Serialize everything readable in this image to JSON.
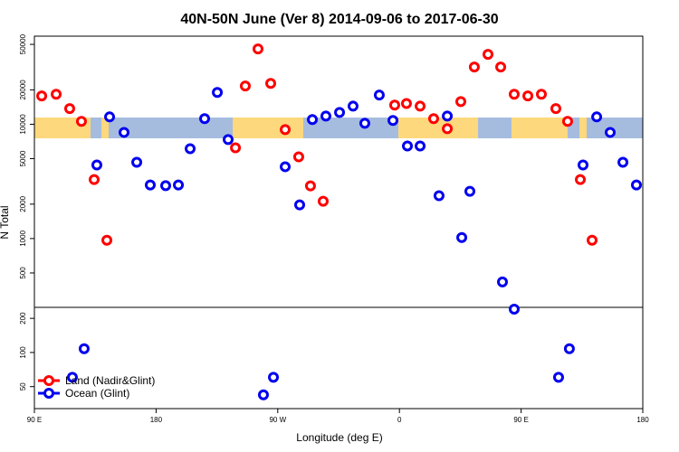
{
  "chart_data": {
    "type": "scatter",
    "title": "40N-50N June (Ver 8)   2014-09-06 to 2017-06-30",
    "x_label": "Longitude (deg E)",
    "y_label": "N Total",
    "log_y": true,
    "legend": "bottom-left",
    "xlim": [
      90,
      540
    ],
    "xticks": [
      {
        "value": 90,
        "label": "90 E"
      },
      {
        "value": 180,
        "label": "180"
      },
      {
        "value": 270,
        "label": "90 W"
      },
      {
        "value": 360,
        "label": "0"
      },
      {
        "value": 450,
        "label": "90 E"
      },
      {
        "value": 540,
        "label": "180"
      }
    ],
    "panels": [
      {
        "ylim": [
          250,
          59000
        ],
        "yticks": [
          500,
          1000,
          2000,
          5000,
          10000,
          20000,
          50000
        ]
      },
      {
        "ylim": [
          32,
          250
        ],
        "yticks": [
          50,
          100,
          200
        ]
      }
    ],
    "series": [
      {
        "name": "Land (Nadir&Glint)",
        "color": "#ff0000",
        "x": [
          95.4,
          106.1,
          116.1,
          124.8,
          134.2,
          143.6,
          238.7,
          246.0,
          255.4,
          264.8,
          275.5,
          285.5,
          294.2,
          303.6,
          356.5,
          365.2,
          375.3,
          385.3,
          395.4,
          405.4,
          415.4,
          425.5,
          434.9,
          444.9,
          455.0,
          465.0,
          475.7,
          484.4,
          493.8,
          502.5
        ],
        "values": [
          17700,
          18300,
          13700,
          10600,
          3280,
          966,
          6220,
          21600,
          45600,
          22800,
          8980,
          5190,
          2890,
          2120,
          14700,
          15200,
          14400,
          11200,
          9140,
          15800,
          31700,
          40900,
          31700,
          18300,
          17700,
          18300,
          13700,
          10600,
          3280,
          966
        ]
      },
      {
        "name": "Ocean (Glint)",
        "color": "#0000ee",
        "x": [
          118.1,
          126.8,
          136.2,
          145.6,
          156.3,
          165.7,
          175.7,
          187.1,
          196.5,
          205.2,
          215.9,
          225.3,
          233.3,
          259.4,
          266.8,
          275.5,
          286.2,
          295.6,
          305.6,
          315.7,
          325.7,
          334.4,
          345.1,
          355.2,
          365.9,
          375.3,
          389.3,
          395.4,
          406.1,
          412.1,
          436.2,
          444.9,
          477.7,
          485.7,
          495.8,
          505.9,
          515.9,
          525.3,
          535.3
        ],
        "values": [
          60.4,
          108,
          4400,
          11600,
          8490,
          4650,
          2940,
          2900,
          2940,
          6110,
          11200,
          19000,
          7350,
          42.3,
          60.4,
          4250,
          1970,
          11000,
          11800,
          12700,
          14400,
          10200,
          18000,
          10800,
          6460,
          6460,
          2370,
          11800,
          1020,
          2590,
          417,
          241,
          60.4,
          108,
          4400,
          11600,
          8490,
          4650,
          2940
        ]
      }
    ]
  }
}
